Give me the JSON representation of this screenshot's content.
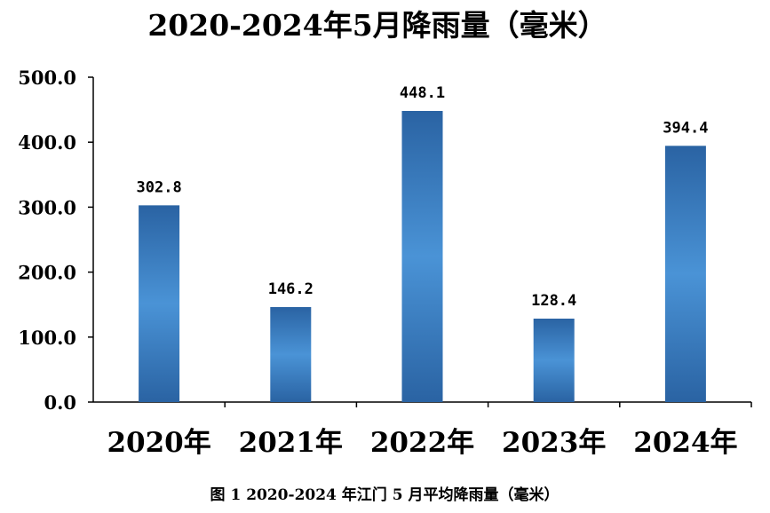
{
  "chart_data": {
    "type": "bar",
    "title": "2020-2024年5月降雨量（毫米）",
    "caption": "图 1 2020-2024 年江门 5 月平均降雨量（毫米）",
    "categories": [
      "2020年",
      "2021年",
      "2022年",
      "2023年",
      "2024年"
    ],
    "values": [
      302.8,
      146.2,
      448.1,
      128.4,
      394.4
    ],
    "value_labels": [
      "302.8",
      "146.2",
      "448.1",
      "128.4",
      "394.4"
    ],
    "y_ticks": [
      "0.0",
      "100.0",
      "200.0",
      "300.0",
      "400.0",
      "500.0"
    ],
    "ylim": [
      0,
      500
    ],
    "xlabel": "",
    "ylabel": "",
    "grid": false,
    "legend": "none",
    "colors": {
      "bar_edge": "#2a63a3",
      "bar_center": "#4a93d6",
      "axis": "#000000"
    }
  }
}
